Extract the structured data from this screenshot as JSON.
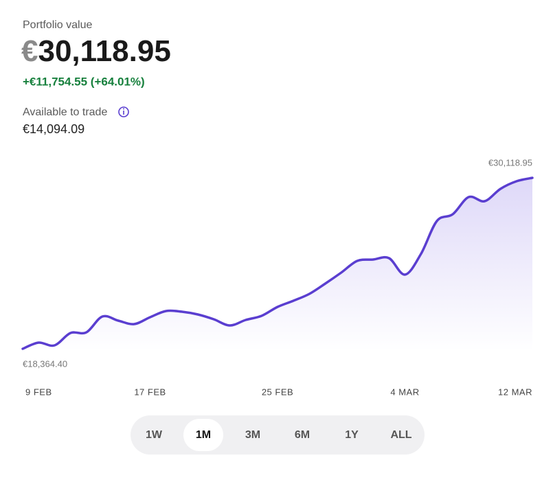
{
  "header": {
    "title": "Portfolio value",
    "currency": "€",
    "amount": "30,118.95",
    "change": "+€11,754.55 (+64.01%)",
    "available_label": "Available to trade",
    "available_value": "€14,094.09"
  },
  "chart_data": {
    "type": "line",
    "categories": [
      "9 FEB",
      null,
      null,
      null,
      null,
      null,
      null,
      null,
      "17 FEB",
      null,
      null,
      null,
      null,
      null,
      null,
      null,
      "25 FEB",
      null,
      null,
      null,
      null,
      null,
      null,
      null,
      "4 MAR",
      null,
      null,
      null,
      null,
      null,
      null,
      null,
      "12 MAR"
    ],
    "series": [
      {
        "color": "#5a3ed0",
        "values": [
          18364.4,
          18789,
          18600,
          19450,
          19497,
          20583,
          20300,
          20064,
          20536,
          20961,
          20914,
          20725,
          20394,
          19969,
          20347,
          20630,
          21244,
          21669,
          22141,
          22849,
          23604,
          24407,
          24501,
          24596,
          23463,
          24879,
          27145,
          27617,
          28797,
          28514,
          29364,
          29883,
          30118.95
        ],
        "value_labels": [
          "€18,364.40",
          null,
          null,
          null,
          null,
          null,
          null,
          null,
          null,
          null,
          null,
          null,
          null,
          null,
          null,
          null,
          null,
          null,
          null,
          null,
          null,
          null,
          null,
          null,
          null,
          null,
          null,
          null,
          null,
          null,
          null,
          null,
          "€30,118.95"
        ]
      }
    ],
    "ylim": [
      18364.4,
      30118.95
    ]
  },
  "range_buttons": {
    "options": [
      "1W",
      "1M",
      "3M",
      "6M",
      "1Y",
      "ALL"
    ],
    "selected": "1M"
  }
}
